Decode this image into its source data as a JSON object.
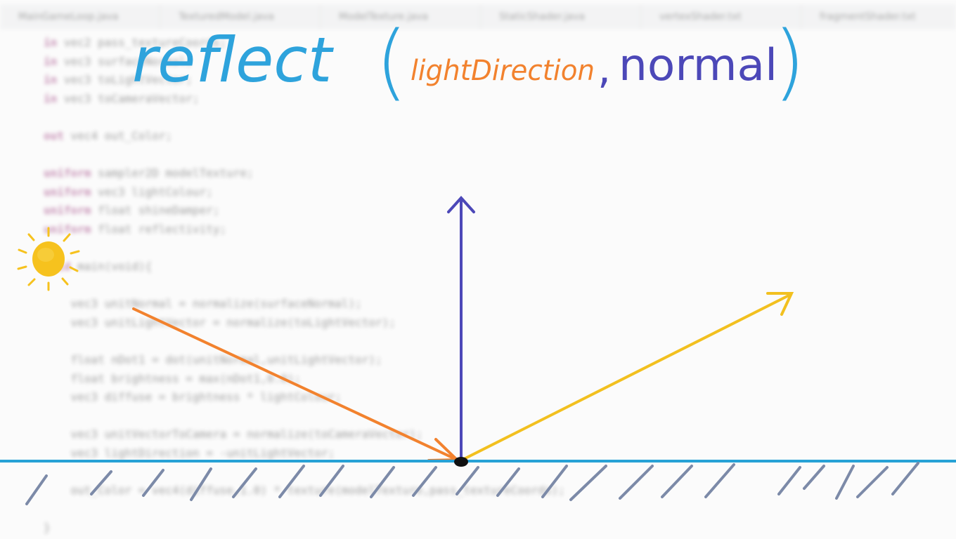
{
  "editor": {
    "tabs": [
      {
        "label": "MainGameLoop.java"
      },
      {
        "label": "TexturedModel.java"
      },
      {
        "label": "ModelTexture.java"
      },
      {
        "label": "StaticShader.java"
      },
      {
        "label": "vertexShader.txt"
      },
      {
        "label": "fragmentShader.txt"
      }
    ],
    "code_lines": [
      {
        "n": "",
        "segments": [
          {
            "kw": "in",
            "text": " vec2 pass_textureCoords;"
          }
        ]
      },
      {
        "n": "",
        "segments": [
          {
            "kw": "in",
            "text": " vec3 surfaceNormal;"
          }
        ]
      },
      {
        "n": "",
        "segments": [
          {
            "kw": "in",
            "text": " vec3 toLightVector;"
          }
        ]
      },
      {
        "n": "",
        "segments": [
          {
            "kw": "in",
            "text": " vec3 toCameraVector;"
          }
        ]
      },
      {
        "n": "",
        "segments": [
          {
            "kw": "",
            "text": ""
          }
        ]
      },
      {
        "n": "",
        "segments": [
          {
            "kw": "out",
            "text": " vec4 out_Color;"
          }
        ]
      },
      {
        "n": "",
        "segments": [
          {
            "kw": "",
            "text": ""
          }
        ]
      },
      {
        "n": "",
        "segments": [
          {
            "kw": "uniform",
            "text": " sampler2D modelTexture;"
          }
        ]
      },
      {
        "n": "",
        "segments": [
          {
            "kw": "uniform",
            "text": " vec3 lightColour;"
          }
        ]
      },
      {
        "n": "",
        "segments": [
          {
            "kw": "uniform",
            "text": " float shineDamper;"
          }
        ]
      },
      {
        "n": "",
        "segments": [
          {
            "kw": "uniform",
            "text": " float reflectivity;"
          }
        ]
      },
      {
        "n": "",
        "segments": [
          {
            "kw": "",
            "text": ""
          }
        ]
      },
      {
        "n": "",
        "segments": [
          {
            "kw": "void",
            "text": " main(void){"
          }
        ]
      },
      {
        "n": "",
        "segments": [
          {
            "kw": "",
            "text": ""
          }
        ]
      },
      {
        "n": "",
        "segments": [
          {
            "kw": "",
            "text": "    vec3 unitNormal = normalize(surfaceNormal);"
          }
        ]
      },
      {
        "n": "",
        "segments": [
          {
            "kw": "",
            "text": "    vec3 unitLightVector = normalize(toLightVector);"
          }
        ]
      },
      {
        "n": "",
        "segments": [
          {
            "kw": "",
            "text": ""
          }
        ]
      },
      {
        "n": "",
        "segments": [
          {
            "kw": "",
            "text": "    float nDot1 = dot(unitNormal,unitLightVector);"
          }
        ]
      },
      {
        "n": "",
        "segments": [
          {
            "kw": "",
            "text": "    float brightness = max(nDot1,0.0);"
          }
        ]
      },
      {
        "n": "",
        "segments": [
          {
            "kw": "",
            "text": "    vec3 diffuse = brightness * lightColour;"
          }
        ]
      },
      {
        "n": "",
        "segments": [
          {
            "kw": "",
            "text": ""
          }
        ]
      },
      {
        "n": "",
        "segments": [
          {
            "kw": "",
            "text": "    vec3 unitVectorToCamera = normalize(toCameraVector);"
          }
        ]
      },
      {
        "n": "",
        "segments": [
          {
            "kw": "",
            "text": "    vec3 lightDirection = -unitLightVector;"
          }
        ]
      },
      {
        "n": "",
        "segments": [
          {
            "kw": "",
            "text": ""
          }
        ]
      },
      {
        "n": "",
        "segments": [
          {
            "kw": "",
            "text": "    out_Color = vec4(diffuse,1.0) * texture(modelTexture,pass_textureCoords);"
          }
        ]
      },
      {
        "n": "",
        "segments": [
          {
            "kw": "",
            "text": ""
          }
        ]
      },
      {
        "n": "",
        "segments": [
          {
            "kw": "",
            "text": "}"
          }
        ]
      }
    ]
  },
  "diagram": {
    "title": {
      "function": "reflect",
      "open_paren": "(",
      "arg1": "lightDirection",
      "comma": ",",
      "arg2": "normal",
      "close_paren": ")"
    },
    "colors": {
      "function": "#2ea3dc",
      "arg1": "#f2822e",
      "arg2": "#4c48b8",
      "surface": "#27a2d6",
      "hatch": "#7c8aa8",
      "normal_arrow": "#4c48b8",
      "incoming_arrow": "#f2822e",
      "reflected_arrow": "#f2c01f",
      "sun": "#f6c21e",
      "contact_point": "#111111"
    },
    "icons": {
      "sun": "sun-icon"
    }
  }
}
